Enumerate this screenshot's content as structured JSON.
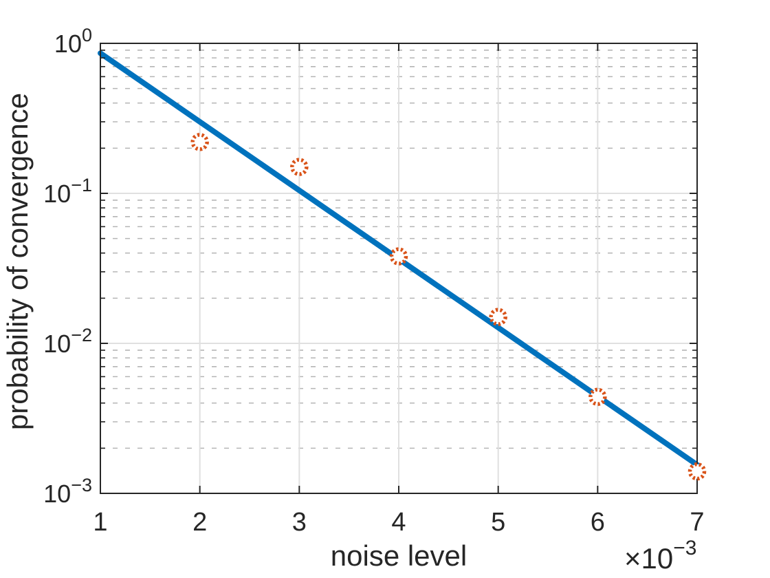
{
  "chart_data": {
    "type": "line",
    "title": "",
    "xlabel": "noise level",
    "ylabel": "probability of convergence",
    "x_scale": "linear",
    "y_scale": "log",
    "xlim": [
      1,
      7
    ],
    "ylim": [
      0.001,
      1
    ],
    "x_ticks": [
      1,
      2,
      3,
      4,
      5,
      6,
      7
    ],
    "x_offset": {
      "prefix": "×10",
      "exponent": "−3"
    },
    "y_tick_exponents": [
      0,
      -1,
      -2,
      -3
    ],
    "grid": {
      "major": true,
      "minor": true
    },
    "legend_position": "none",
    "series": [
      {
        "key": "fit_line",
        "type": "line",
        "color": "#0072bd",
        "line_width": 8,
        "x": [
          1,
          7
        ],
        "y": [
          0.86,
          0.00155
        ]
      },
      {
        "key": "data_points",
        "type": "scatter",
        "color": "#d95319",
        "marker": "dotted-circle",
        "x": [
          2,
          3,
          4,
          5,
          6,
          7
        ],
        "y": [
          0.22,
          0.15,
          0.038,
          0.015,
          0.0044,
          0.0014
        ]
      }
    ],
    "colors": {
      "axis": "#262626",
      "grid_major": "#e0e0e0",
      "grid_minor": "#b5b5b5",
      "background": "#ffffff",
      "marker_fill": "#ffffff"
    }
  }
}
